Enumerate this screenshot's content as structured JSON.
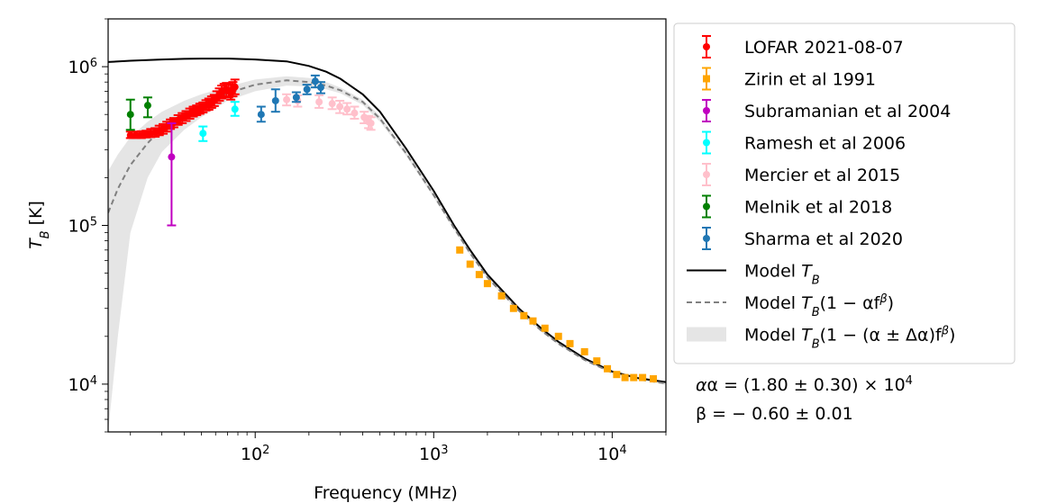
{
  "chart_data": {
    "type": "scatter",
    "x_scale": "log",
    "y_scale": "log",
    "xlim": [
      15,
      20000
    ],
    "ylim": [
      5000,
      2000000
    ],
    "xlabel": "Frequency (MHz)",
    "ylabel_base": "T",
    "ylabel_sub": "B",
    "ylabel_unit": " [K]",
    "x_ticks": [
      {
        "value": 100,
        "base": "10",
        "exp": "2"
      },
      {
        "value": 1000,
        "base": "10",
        "exp": "3"
      },
      {
        "value": 10000,
        "base": "10",
        "exp": "4"
      }
    ],
    "y_ticks": [
      {
        "value": 10000,
        "base": "10",
        "exp": "4"
      },
      {
        "value": 100000,
        "base": "10",
        "exp": "5"
      },
      {
        "value": 1000000,
        "base": "10",
        "exp": "6"
      }
    ],
    "grid": false,
    "legend_position": "outside-right",
    "series": [
      {
        "name": "LOFAR 2021-08-07",
        "color": "#ff0000",
        "style": "errorbar-circle",
        "points": [
          {
            "x": 20,
            "y": 370000,
            "lo": 355000,
            "hi": 390000
          },
          {
            "x": 21.5,
            "y": 370000,
            "lo": 355000,
            "hi": 390000
          },
          {
            "x": 23,
            "y": 372000,
            "lo": 355000,
            "hi": 392000
          },
          {
            "x": 24.5,
            "y": 375000,
            "lo": 358000,
            "hi": 395000
          },
          {
            "x": 26,
            "y": 380000,
            "lo": 360000,
            "hi": 405000
          },
          {
            "x": 27.5,
            "y": 385000,
            "lo": 362000,
            "hi": 410000
          },
          {
            "x": 29,
            "y": 395000,
            "lo": 370000,
            "hi": 425000
          },
          {
            "x": 30.5,
            "y": 405000,
            "lo": 378000,
            "hi": 435000
          },
          {
            "x": 32,
            "y": 420000,
            "lo": 390000,
            "hi": 450000
          },
          {
            "x": 33.5,
            "y": 435000,
            "lo": 405000,
            "hi": 465000
          },
          {
            "x": 35,
            "y": 445000,
            "lo": 415000,
            "hi": 475000
          },
          {
            "x": 37,
            "y": 460000,
            "lo": 430000,
            "hi": 495000
          },
          {
            "x": 39,
            "y": 475000,
            "lo": 440000,
            "hi": 510000
          },
          {
            "x": 41,
            "y": 490000,
            "lo": 455000,
            "hi": 525000
          },
          {
            "x": 43,
            "y": 505000,
            "lo": 470000,
            "hi": 545000
          },
          {
            "x": 45,
            "y": 520000,
            "lo": 485000,
            "hi": 560000
          },
          {
            "x": 47,
            "y": 530000,
            "lo": 495000,
            "hi": 570000
          },
          {
            "x": 49,
            "y": 545000,
            "lo": 505000,
            "hi": 585000
          },
          {
            "x": 51,
            "y": 555000,
            "lo": 515000,
            "hi": 595000
          },
          {
            "x": 53,
            "y": 570000,
            "lo": 530000,
            "hi": 615000
          },
          {
            "x": 55,
            "y": 580000,
            "lo": 535000,
            "hi": 630000
          },
          {
            "x": 57,
            "y": 595000,
            "lo": 550000,
            "hi": 650000
          },
          {
            "x": 59,
            "y": 615000,
            "lo": 565000,
            "hi": 665000
          },
          {
            "x": 61,
            "y": 640000,
            "lo": 590000,
            "hi": 700000
          },
          {
            "x": 63,
            "y": 665000,
            "lo": 610000,
            "hi": 730000
          },
          {
            "x": 65,
            "y": 690000,
            "lo": 630000,
            "hi": 760000
          },
          {
            "x": 67,
            "y": 710000,
            "lo": 645000,
            "hi": 780000
          },
          {
            "x": 69,
            "y": 720000,
            "lo": 650000,
            "hi": 790000
          },
          {
            "x": 71,
            "y": 705000,
            "lo": 640000,
            "hi": 780000
          },
          {
            "x": 73,
            "y": 690000,
            "lo": 620000,
            "hi": 770000
          },
          {
            "x": 75,
            "y": 720000,
            "lo": 650000,
            "hi": 800000
          },
          {
            "x": 77,
            "y": 745000,
            "lo": 670000,
            "hi": 830000
          }
        ]
      },
      {
        "name": "Zirin et al 1991",
        "color": "#ffa500",
        "style": "errorbar-square",
        "points": [
          {
            "x": 1400,
            "y": 70000
          },
          {
            "x": 1600,
            "y": 57000
          },
          {
            "x": 1800,
            "y": 49000
          },
          {
            "x": 2000,
            "y": 43000
          },
          {
            "x": 2400,
            "y": 36000
          },
          {
            "x": 2800,
            "y": 30000
          },
          {
            "x": 3200,
            "y": 27000
          },
          {
            "x": 3600,
            "y": 25000
          },
          {
            "x": 4200,
            "y": 22500
          },
          {
            "x": 5000,
            "y": 20000
          },
          {
            "x": 5800,
            "y": 18000
          },
          {
            "x": 7000,
            "y": 16000
          },
          {
            "x": 8200,
            "y": 14000
          },
          {
            "x": 9400,
            "y": 12500
          },
          {
            "x": 10600,
            "y": 11500
          },
          {
            "x": 11800,
            "y": 11000
          },
          {
            "x": 13200,
            "y": 11000
          },
          {
            "x": 14800,
            "y": 11000
          },
          {
            "x": 17000,
            "y": 10800
          }
        ]
      },
      {
        "name": "Subramanian et al 2004",
        "color": "#c000c0",
        "style": "errorbar-circle",
        "points": [
          {
            "x": 34,
            "y": 270000,
            "lo": 100000,
            "hi": 440000
          }
        ]
      },
      {
        "name": "Ramesh et al 2006",
        "color": "#00ffff",
        "style": "errorbar-circle",
        "points": [
          {
            "x": 51,
            "y": 380000,
            "lo": 340000,
            "hi": 420000
          },
          {
            "x": 77,
            "y": 540000,
            "lo": 490000,
            "hi": 600000
          }
        ]
      },
      {
        "name": "Mercier et al 2015",
        "color": "#ffc0cb",
        "style": "errorbar-circle",
        "points": [
          {
            "x": 150,
            "y": 620000,
            "lo": 570000,
            "hi": 670000
          },
          {
            "x": 173,
            "y": 610000,
            "lo": 560000,
            "hi": 660000
          },
          {
            "x": 228,
            "y": 600000,
            "lo": 550000,
            "hi": 660000
          },
          {
            "x": 270,
            "y": 585000,
            "lo": 540000,
            "hi": 640000
          },
          {
            "x": 298,
            "y": 560000,
            "lo": 510000,
            "hi": 610000
          },
          {
            "x": 327,
            "y": 540000,
            "lo": 500000,
            "hi": 590000
          },
          {
            "x": 360,
            "y": 510000,
            "lo": 470000,
            "hi": 560000
          },
          {
            "x": 408,
            "y": 480000,
            "lo": 440000,
            "hi": 520000
          },
          {
            "x": 432,
            "y": 450000,
            "lo": 410000,
            "hi": 490000
          },
          {
            "x": 445,
            "y": 440000,
            "lo": 400000,
            "hi": 480000
          }
        ]
      },
      {
        "name": "Melnik et al 2018",
        "color": "#008000",
        "style": "errorbar-circle",
        "points": [
          {
            "x": 20,
            "y": 500000,
            "lo": 400000,
            "hi": 620000
          },
          {
            "x": 25,
            "y": 570000,
            "lo": 480000,
            "hi": 640000
          }
        ]
      },
      {
        "name": "Sharma et al 2020",
        "color": "#1f77b4",
        "style": "errorbar-circle",
        "points": [
          {
            "x": 108,
            "y": 500000,
            "lo": 450000,
            "hi": 560000
          },
          {
            "x": 130,
            "y": 610000,
            "lo": 520000,
            "hi": 720000
          },
          {
            "x": 170,
            "y": 640000,
            "lo": 600000,
            "hi": 690000
          },
          {
            "x": 195,
            "y": 720000,
            "lo": 670000,
            "hi": 770000
          },
          {
            "x": 217,
            "y": 810000,
            "lo": 740000,
            "hi": 880000
          },
          {
            "x": 233,
            "y": 740000,
            "lo": 680000,
            "hi": 800000
          }
        ]
      }
    ],
    "model_lines": [
      {
        "name_base": "Model ",
        "name_var": "T",
        "name_sub": "B",
        "name_tail": "",
        "color": "#000000",
        "dash": "solid",
        "points": [
          [
            15,
            1070000
          ],
          [
            20,
            1090000
          ],
          [
            30,
            1110000
          ],
          [
            40,
            1120000
          ],
          [
            50,
            1125000
          ],
          [
            70,
            1125000
          ],
          [
            100,
            1110000
          ],
          [
            150,
            1080000
          ],
          [
            200,
            1010000
          ],
          [
            250,
            930000
          ],
          [
            300,
            840000
          ],
          [
            400,
            670000
          ],
          [
            500,
            520000
          ],
          [
            700,
            305000
          ],
          [
            1000,
            165000
          ],
          [
            1300,
            100000
          ],
          [
            1600,
            70000
          ],
          [
            2000,
            49000
          ],
          [
            3000,
            30000
          ],
          [
            4000,
            22500
          ],
          [
            5000,
            18500
          ],
          [
            7000,
            14500
          ],
          [
            10000,
            12000
          ],
          [
            14000,
            10900
          ],
          [
            20000,
            10300
          ]
        ]
      },
      {
        "name_base": "Model ",
        "name_var": "T",
        "name_sub": "B",
        "name_tail": "(1 − αf",
        "name_sup": "β",
        "name_end": ")",
        "color": "#808080",
        "dash": "dashed",
        "points": [
          [
            15,
            120000
          ],
          [
            17,
            170000
          ],
          [
            20,
            240000
          ],
          [
            25,
            330000
          ],
          [
            30,
            410000
          ],
          [
            40,
            510000
          ],
          [
            50,
            580000
          ],
          [
            70,
            680000
          ],
          [
            100,
            770000
          ],
          [
            150,
            820000
          ],
          [
            200,
            800000
          ],
          [
            250,
            760000
          ],
          [
            300,
            710000
          ],
          [
            400,
            600000
          ],
          [
            500,
            470000
          ],
          [
            700,
            285000
          ],
          [
            1000,
            155000
          ],
          [
            1300,
            96000
          ],
          [
            1600,
            67000
          ],
          [
            2000,
            47000
          ],
          [
            3000,
            29000
          ],
          [
            4000,
            21800
          ],
          [
            5000,
            18000
          ],
          [
            7000,
            14200
          ],
          [
            10000,
            11800
          ],
          [
            14000,
            10700
          ],
          [
            20000,
            10100
          ]
        ]
      }
    ],
    "band": {
      "name_base": "Model ",
      "name_var": "T",
      "name_sub": "B",
      "name_tail": "(1 − (α ± Δα)f",
      "name_sup": "β",
      "name_end": ")",
      "color": "#e5e5e5",
      "upper": [
        [
          15,
          220000
        ],
        [
          17,
          280000
        ],
        [
          20,
          360000
        ],
        [
          25,
          450000
        ],
        [
          30,
          520000
        ],
        [
          40,
          610000
        ],
        [
          50,
          670000
        ],
        [
          70,
          750000
        ],
        [
          100,
          830000
        ],
        [
          150,
          870000
        ],
        [
          200,
          850000
        ],
        [
          250,
          800000
        ],
        [
          300,
          740000
        ],
        [
          400,
          620000
        ],
        [
          500,
          490000
        ],
        [
          700,
          295000
        ],
        [
          1000,
          160000
        ],
        [
          1300,
          98000
        ],
        [
          1600,
          69000
        ],
        [
          2000,
          48000
        ],
        [
          3000,
          29500
        ],
        [
          4000,
          22200
        ],
        [
          5000,
          18300
        ],
        [
          7000,
          14400
        ],
        [
          10000,
          12000
        ],
        [
          20000,
          10300
        ]
      ],
      "lower": [
        [
          20000,
          9900
        ],
        [
          10000,
          11600
        ],
        [
          7000,
          14000
        ],
        [
          5000,
          17700
        ],
        [
          4000,
          21400
        ],
        [
          3000,
          28500
        ],
        [
          2000,
          46000
        ],
        [
          1600,
          65000
        ],
        [
          1300,
          94000
        ],
        [
          1000,
          150000
        ],
        [
          700,
          275000
        ],
        [
          500,
          450000
        ],
        [
          400,
          575000
        ],
        [
          300,
          680000
        ],
        [
          250,
          720000
        ],
        [
          200,
          750000
        ],
        [
          150,
          760000
        ],
        [
          100,
          700000
        ],
        [
          70,
          610000
        ],
        [
          50,
          480000
        ],
        [
          40,
          400000
        ],
        [
          30,
          290000
        ],
        [
          25,
          200000
        ],
        [
          20,
          90000
        ],
        [
          17,
          20000
        ],
        [
          15,
          5000
        ]
      ]
    },
    "annotations": {
      "alpha_line": "α = (1.80 ± 0.30) × 10",
      "alpha_exp": "4",
      "beta_line": "β = − 0.60 ± 0.01"
    }
  }
}
